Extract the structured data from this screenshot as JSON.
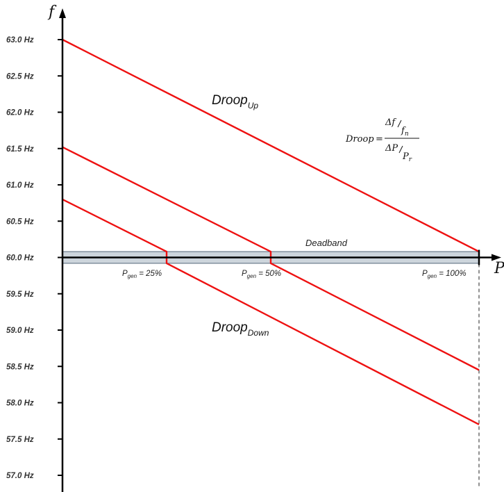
{
  "axes": {
    "y_symbol": "f",
    "x_symbol": "P"
  },
  "y_ticks": [
    "63.0 Hz",
    "62.5 Hz",
    "62.0 Hz",
    "61.5 Hz",
    "61.0 Hz",
    "60.5 Hz",
    "60.0 Hz",
    "59.5 Hz",
    "59.0 Hz",
    "58.5 Hz",
    "58.0 Hz",
    "57.5 Hz",
    "57.0 Hz"
  ],
  "y_tick_values": [
    63.0,
    62.5,
    62.0,
    61.5,
    61.0,
    60.5,
    60.0,
    59.5,
    59.0,
    58.5,
    58.0,
    57.5,
    57.0
  ],
  "x_markers": [
    {
      "base": "P",
      "sub": "gen",
      "text": " = 25%",
      "p": 25
    },
    {
      "base": "P",
      "sub": "gen",
      "text": " = 50%",
      "p": 50
    },
    {
      "base": "P",
      "sub": "gen",
      "text": " = 100%",
      "p": 100
    }
  ],
  "labels": {
    "droop_up": {
      "base": "Droop",
      "sub": "Up"
    },
    "droop_down": {
      "base": "Droop",
      "sub": "Down"
    },
    "deadband": "Deadband"
  },
  "formula": {
    "lhs": "Droop",
    "eq": "=",
    "num_top": "Δf",
    "num_bot": "f",
    "num_bot_sub": "n",
    "den_top": "ΔP",
    "den_bot": "P",
    "den_bot_sub": "r"
  },
  "colors": {
    "curve": "#ee1111",
    "axis": "#000000",
    "deadband_fill": "#cdd5dc",
    "deadband_edge": "#6f7f8f"
  },
  "chart_data": {
    "type": "line",
    "x_unit": "% of rated power",
    "y_unit": "Hz",
    "ylim": [
      57.0,
      63.0
    ],
    "xlim": [
      0,
      100
    ],
    "deadband": [
      59.92,
      60.08
    ],
    "series": [
      {
        "points": [
          [
            0,
            63.0
          ],
          [
            100,
            60.08
          ]
        ]
      },
      {
        "points": [
          [
            0,
            61.52
          ],
          [
            50,
            60.08
          ],
          [
            50,
            59.92
          ],
          [
            100,
            58.45
          ]
        ]
      },
      {
        "points": [
          [
            0,
            60.8
          ],
          [
            25,
            60.08
          ],
          [
            25,
            59.92
          ],
          [
            100,
            57.7
          ]
        ]
      }
    ]
  }
}
